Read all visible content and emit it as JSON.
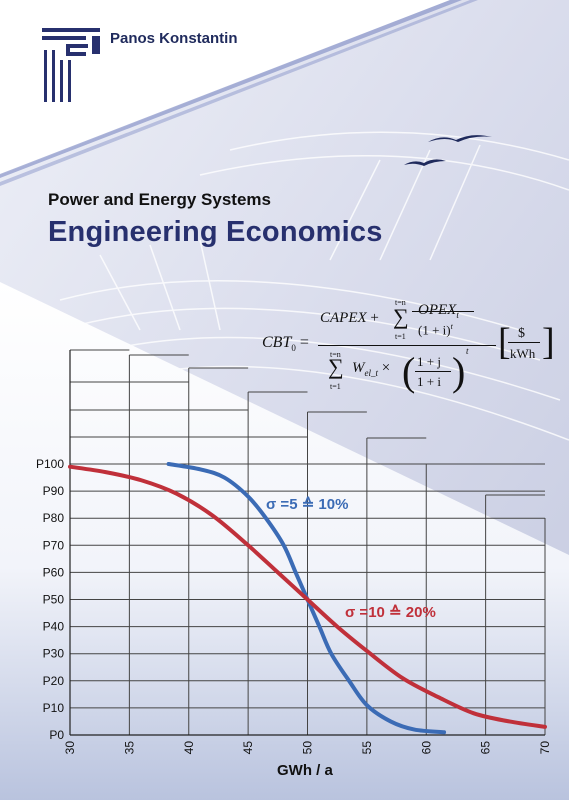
{
  "cover": {
    "author": "Panos Konstantin",
    "subtitle": "Power and Energy Systems",
    "title": "Engineering Economics"
  },
  "formula": {
    "lhs": "CBT",
    "lhs_sub": "0",
    "numerator_capex": "CAPEX",
    "numerator_opex": "OPEX",
    "opex_sub": "t",
    "numerator_den": "(1 + i)",
    "numerator_den_exp": "t",
    "sum_upper": "t=n",
    "sum_lower": "t=1",
    "denominator_w": "W",
    "denominator_w_sub": "el_t",
    "frac_top": "1 + j",
    "frac_bottom": "1 + i",
    "paren_exp": "t",
    "unit_top": "$",
    "unit_bottom": "kWh"
  },
  "chart_data": {
    "type": "line",
    "xlabel": "GWh / a",
    "ylabel": "",
    "x_ticks": [
      "30",
      "35",
      "40",
      "45",
      "50",
      "55",
      "60",
      "65",
      "70"
    ],
    "y_ticks": [
      "P0",
      "P10",
      "P20",
      "P30",
      "P40",
      "P50",
      "P60",
      "P70",
      "P80",
      "P90",
      "P100"
    ],
    "xlim": [
      30,
      70
    ],
    "ylim": [
      0,
      100
    ],
    "grid": true,
    "annotations": [
      "σ =5 ≙ 10%",
      "σ =10 ≙ 20%"
    ],
    "series": [
      {
        "color": "#3b6bb5",
        "x": [
          38.3,
          41,
          43,
          45,
          46.5,
          48,
          49,
          50,
          51,
          52,
          53.5,
          55,
          57,
          59,
          61.5
        ],
        "y": [
          100,
          98,
          95,
          88,
          80,
          70,
          60,
          50,
          40,
          30,
          20,
          11,
          5,
          2,
          1
        ]
      },
      {
        "color": "#c0303a",
        "x": [
          30,
          33,
          36,
          39,
          42,
          45,
          47.5,
          50,
          52.5,
          55,
          58,
          61,
          64,
          67,
          70
        ],
        "y": [
          99,
          97,
          94,
          89,
          81,
          70,
          60,
          50,
          40,
          31,
          21,
          14,
          8,
          5,
          3
        ]
      }
    ]
  }
}
